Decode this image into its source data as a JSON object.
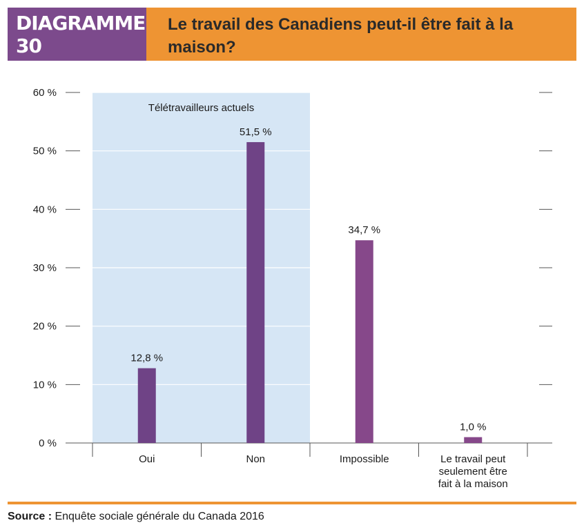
{
  "header": {
    "badge": "DIAGRAMME 30",
    "title": "Le travail des Canadiens peut-il être fait à la maison?"
  },
  "colors": {
    "badge": "#7c4a8c",
    "accent": "#ee9433",
    "bar_dark": "#6f4386",
    "bar_light": "#86488a",
    "highlight_region": "#d6e6f5"
  },
  "chart_data": {
    "type": "bar",
    "categories": [
      "Oui",
      "Non",
      "Impossible",
      "Le travail peut seulement être fait à la maison"
    ],
    "values": [
      12.8,
      51.5,
      34.7,
      1.0
    ],
    "data_labels": [
      "12,8 %",
      "51,5 %",
      "34,7 %",
      "1,0 %"
    ],
    "ylim": [
      0,
      60
    ],
    "yticks": [
      0,
      10,
      20,
      30,
      40,
      50,
      60
    ],
    "ytick_labels": [
      "0 %",
      "10 %",
      "20 %",
      "30 %",
      "40 %",
      "50 %",
      "60 %"
    ],
    "grid": true,
    "highlight": {
      "label": "Télétravailleurs actuels",
      "categories": [
        "Oui",
        "Non"
      ]
    }
  },
  "footer": {
    "source_label": "Source :",
    "source_text": " Enquête sociale générale du Canada 2016"
  }
}
